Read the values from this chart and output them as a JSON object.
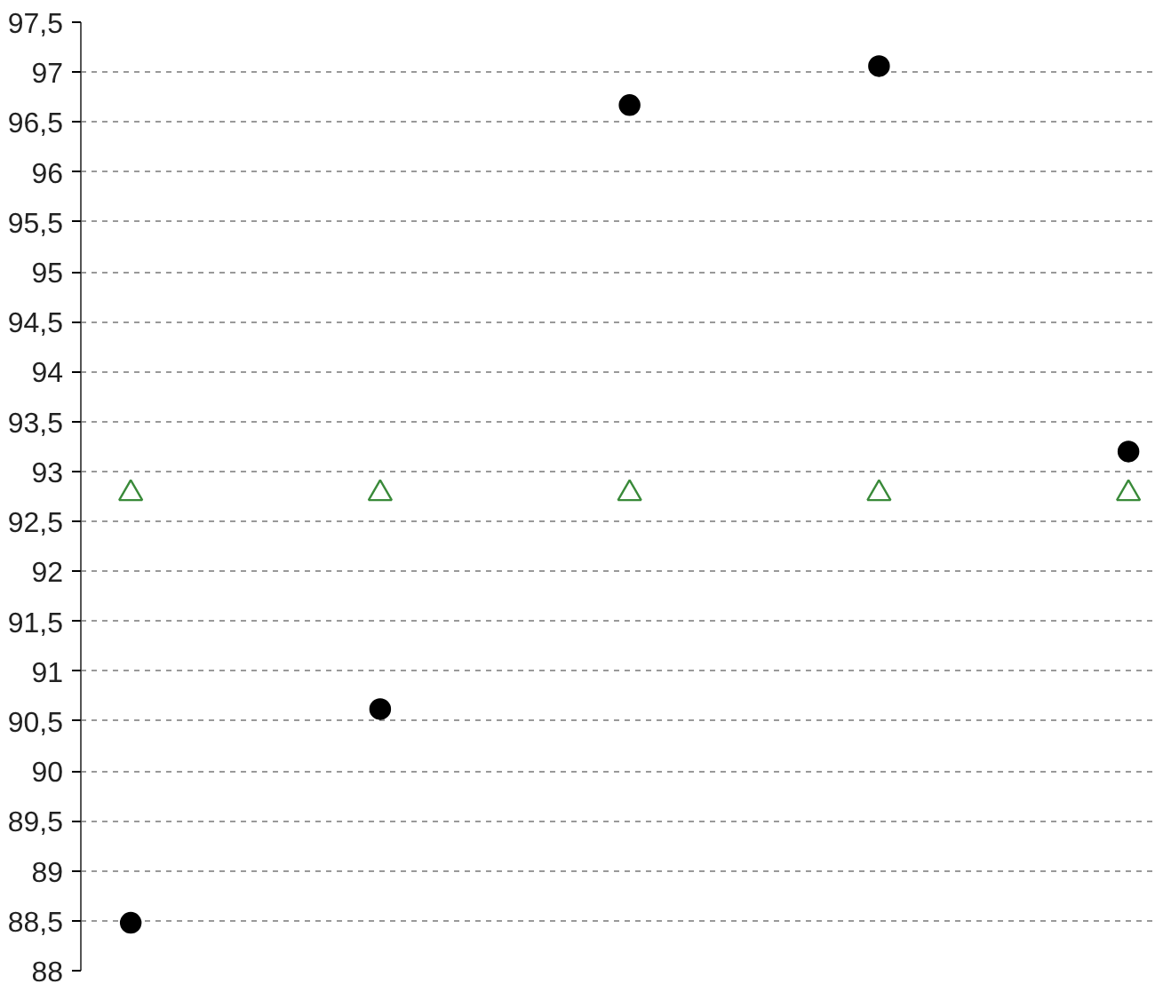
{
  "chart_data": {
    "type": "scatter",
    "categories": [
      null,
      null,
      null,
      null,
      null
    ],
    "series": [
      {
        "color": "#000000",
        "marker": "circle",
        "values": [
          88.48,
          90.62,
          96.67,
          97.06,
          93.2
        ]
      },
      {
        "color": "#3a8a3a",
        "marker": "triangle",
        "values": [
          92.78,
          92.78,
          92.78,
          92.78,
          92.78
        ]
      }
    ],
    "ylim": [
      88,
      97.5
    ],
    "yticks": [
      88,
      {
        "value": 88.5,
        "label": "88,5"
      },
      89,
      {
        "value": 89.5,
        "label": "89,5"
      },
      90,
      {
        "value": 90.5,
        "label": "90,5"
      },
      91,
      {
        "value": 91.5,
        "label": "91,5"
      },
      92,
      {
        "value": 92.5,
        "label": "92,5"
      },
      93,
      {
        "value": 93.5,
        "label": "93,5"
      },
      94,
      {
        "value": 94.5,
        "label": "94,5"
      },
      95,
      {
        "value": 95.5,
        "label": "95,5"
      },
      96,
      {
        "value": 96.5,
        "label": "96,5"
      },
      97,
      {
        "value": 97.5,
        "label": "97,5"
      }
    ],
    "grid": "y",
    "tick_labels": "y"
  }
}
